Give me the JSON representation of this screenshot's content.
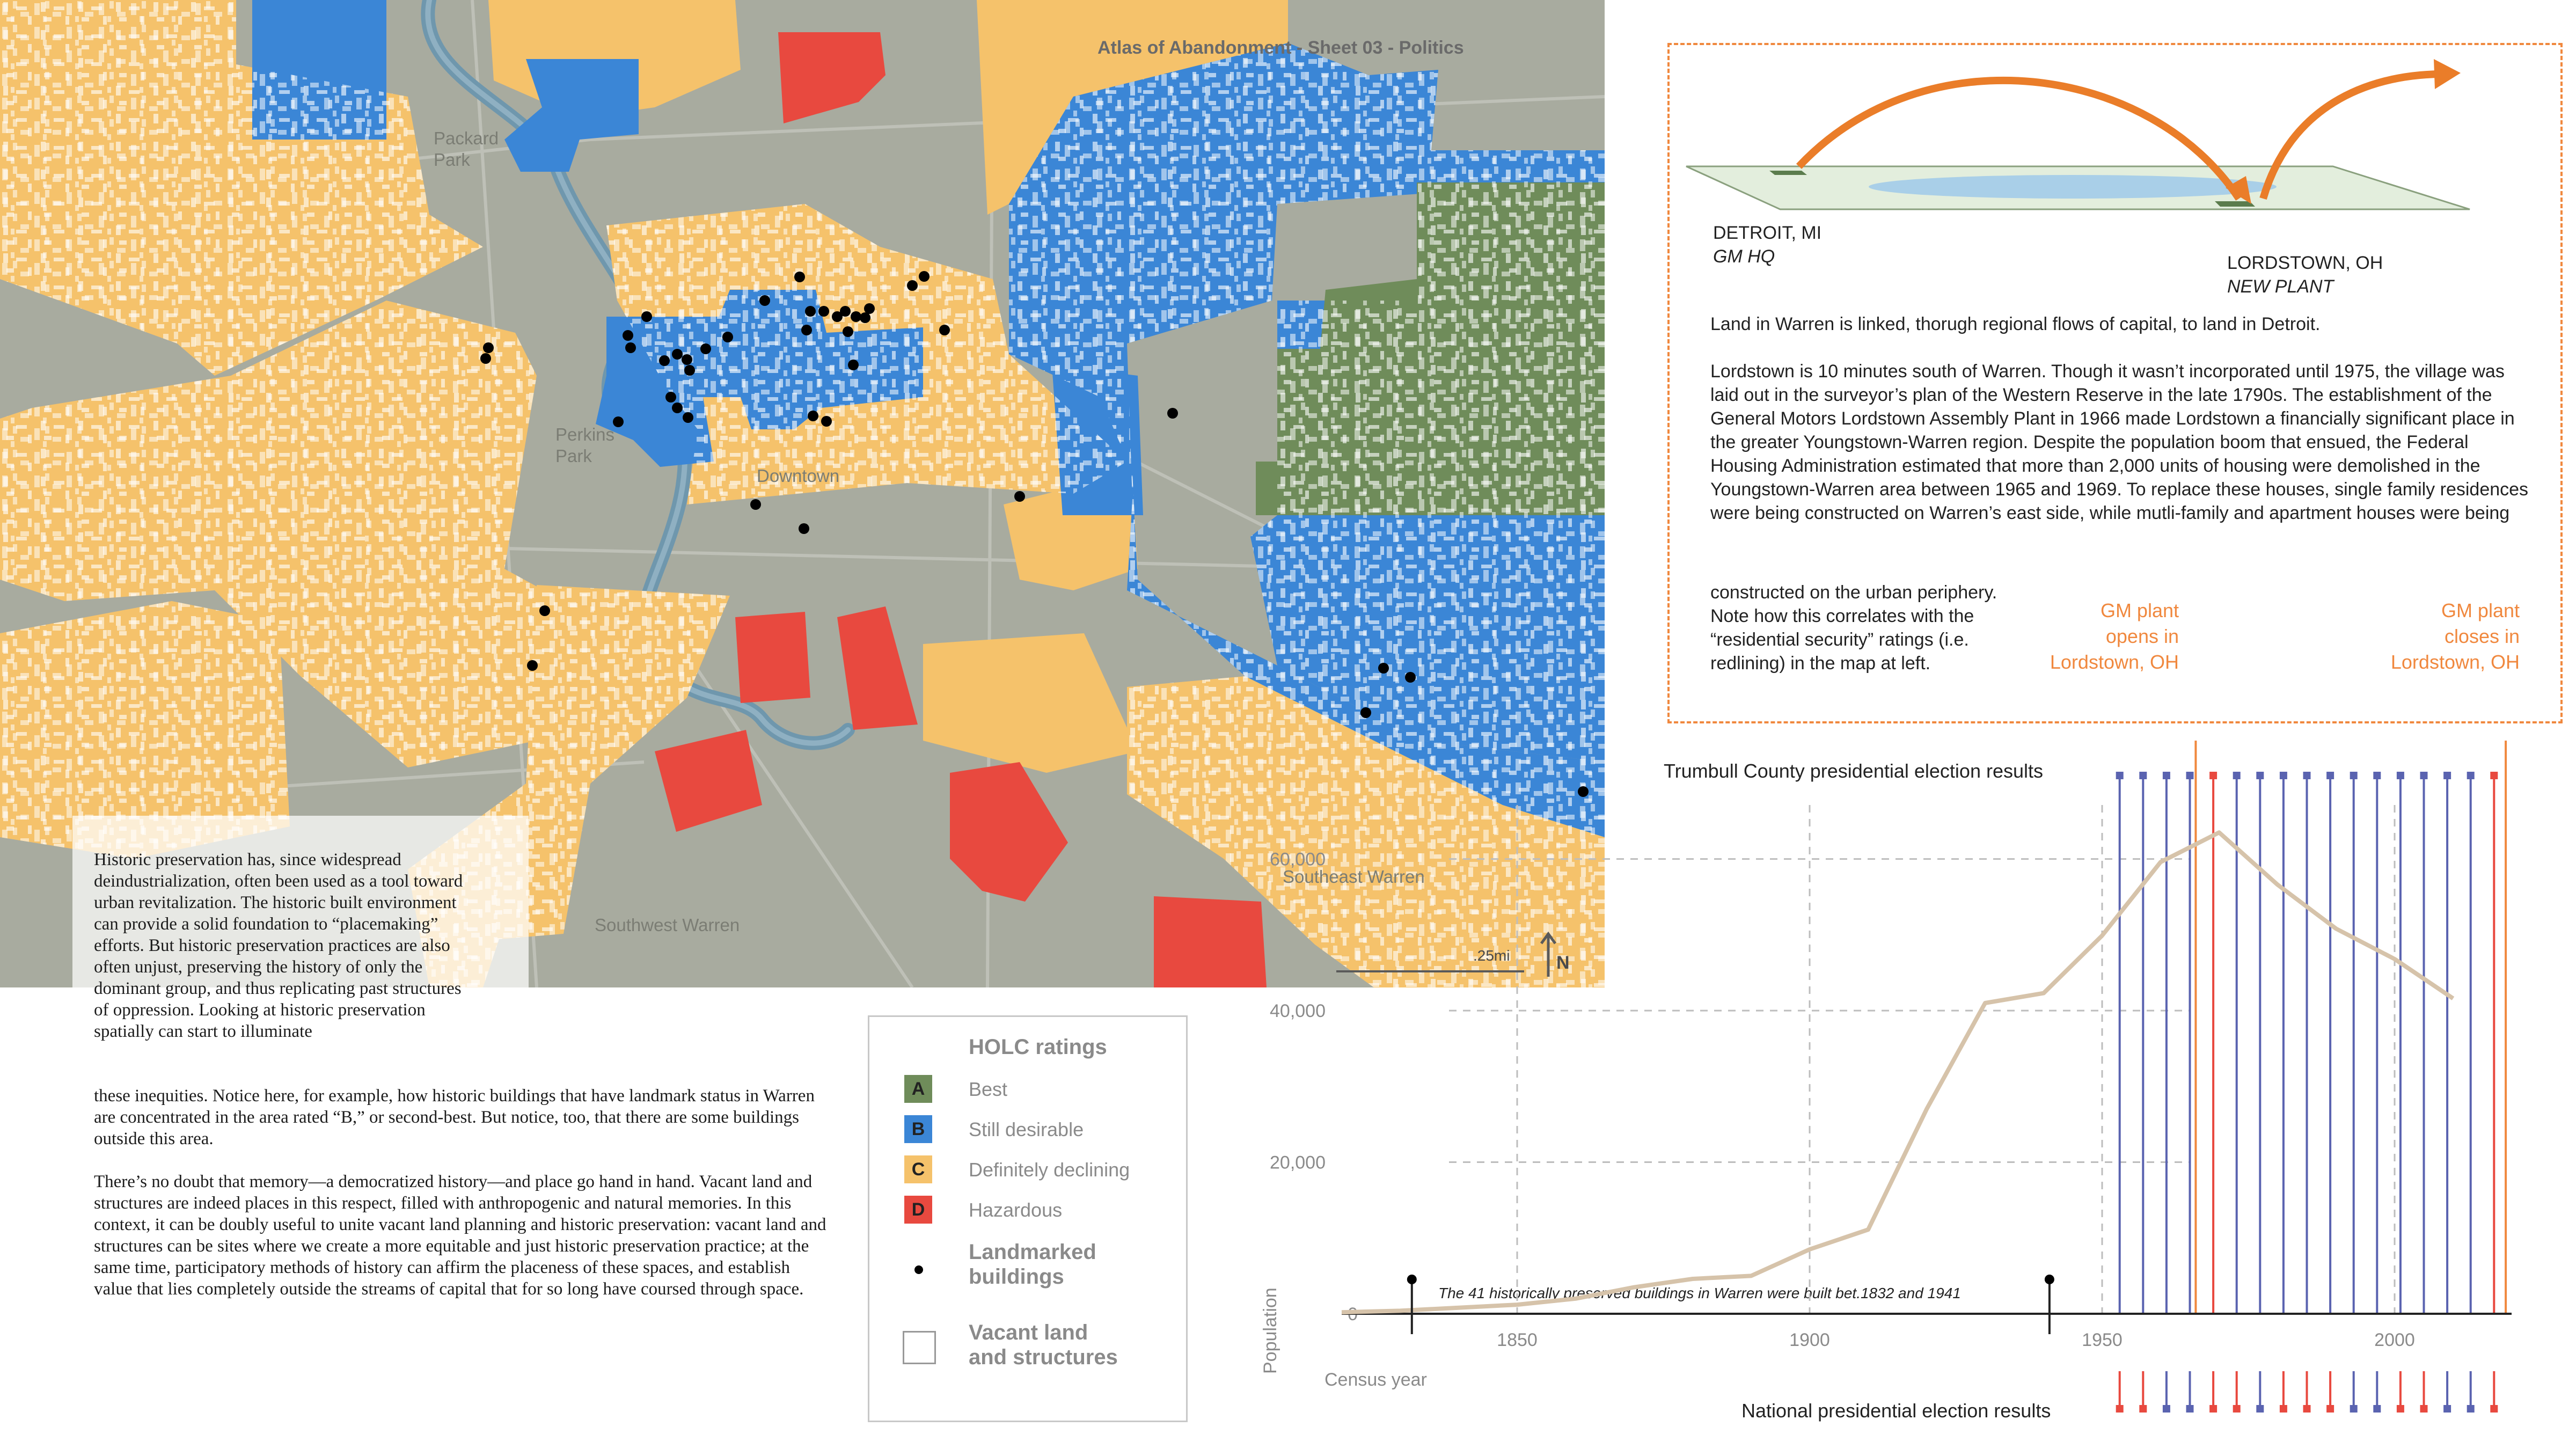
{
  "map": {
    "sheet_title": "Atlas of Abandonment - Sheet 03 - Politics",
    "labels": {
      "packard_park": "Packard\nPark",
      "perkins_park": "Perkins\nPark",
      "downtown": "Downtown",
      "southwest": "Southwest Warren",
      "southeast": "Southeast Warren"
    },
    "scale_label": ".25mi",
    "north_label": "N",
    "colors": {
      "best": "#6f8c5a",
      "still_desirable": "#3b86d6",
      "declining": "#f5c26b",
      "hazardous": "#e8493f",
      "aerial_base": "#a8ab9e",
      "river": "#6f97ad"
    }
  },
  "essay": {
    "paragraph_1_indented": "Historic preservation has, since widespread deindustrialization, often been used as a tool toward urban revitalization. The historic built environment can provide a solid foundation to “placemaking” efforts. But historic preservation practices are also often unjust, preserving the history of only the dominant group, and thus replicating past structures of oppression. Looking at historic preservation spatially can start to illuminate",
    "paragraph_1_rest": "these inequities. Notice here, for example, how historic buildings that have landmark status in Warren are concentrated in the area rated “B,” or second-best. But notice, too, that there are some buildings outside this area.",
    "paragraph_2": "There’s no doubt that memory—a democratized history—and place go hand in hand. Vacant land and structures are indeed places in this respect, filled with anthropogenic and natural memories.   In this context, it can be doubly useful to unite vacant land planning and historic preservation: vacant land and structures can be sites where we create a more equitable and just historic preservation practice; at the same time, participatory methods of history can affirm the placeness of these spaces, and establish value that lies completely outside the streams of capital that for so long have coursed through space."
  },
  "legend": {
    "title": "HOLC ratings",
    "items": [
      {
        "letter": "A",
        "label": "Best",
        "color": "#6f8c5a"
      },
      {
        "letter": "B",
        "label": "Still desirable",
        "color": "#3b86d6"
      },
      {
        "letter": "C",
        "label": "Definitely declining",
        "color": "#f5c26b"
      },
      {
        "letter": "D",
        "label": "Hazardous",
        "color": "#e8493f"
      }
    ],
    "landmarked": "Landmarked\nbuildings",
    "vacant": "Vacant land\nand structures"
  },
  "info": {
    "detroit": "DETROIT, MI",
    "detroit_sub": "GM HQ",
    "lordstown": "LORDSTOWN, OH",
    "lordstown_sub": "NEW PLANT",
    "para_1": "Land in Warren is linked, thorugh regional flows of capital, to land in Detroit.",
    "para_2": "Lordstown is 10 minutes south of Warren. Though it wasn’t incorporated until 1975, the village was laid out in the surveyor’s plan of the Western Reserve in the late 1790s. The establishment of the General Motors Lordstown Assembly Plant in 1966 made Lordstown a financially significant place in the greater Youngstown-Warren region. Despite the population boom that ensued, the Federal Housing Administration estimated that more than 2,000 units of housing were demolished in the Youngstown-Warren area between 1965 and 1969. To replace these houses, single family residences were being constructed on Warren’s east side, while mutli-family and apartment houses were being",
    "para_2_narrow": "constructed on the urban periphery. Note how this correlates with the “residential security” ratings (i.e. redlining) in the map at left.",
    "gm_open": "GM plant\nopens in\nLordstown, OH",
    "gm_close": "GM plant\ncloses in\nLordstown, OH"
  },
  "chart_data": {
    "type": "line",
    "xlabel": "Census year",
    "ylabel": "Population",
    "x_ticks": [
      1850,
      1900,
      1950,
      2000
    ],
    "y_ticks": [
      0,
      20000,
      40000,
      60000
    ],
    "y_tick_labels": [
      "0",
      "20,000",
      "40,000",
      "60,000"
    ],
    "xlim": [
      1820,
      2020
    ],
    "ylim": [
      0,
      65000
    ],
    "grid": true,
    "series": [
      {
        "color": "#d6c3aa",
        "x": [
          1820,
          1830,
          1840,
          1850,
          1860,
          1870,
          1880,
          1890,
          1900,
          1910,
          1920,
          1930,
          1940,
          1950,
          1960,
          1970,
          1980,
          1990,
          2000,
          2010
        ],
        "y": [
          200,
          400,
          800,
          1200,
          2000,
          3500,
          4600,
          5000,
          8500,
          11100,
          27000,
          41000,
          42300,
          49900,
          59600,
          63500,
          56600,
          50800,
          46800,
          41600
        ]
      }
    ],
    "annotation": "The 41 historically preserved buildings in Warren were built bet.1832 and 1941",
    "annotation_markers_x": [
      1832,
      1941
    ],
    "gm_open_year": 1966,
    "gm_close_year": 2019,
    "trumbull_label": "Trumbull County presidential election results",
    "national_label": "National presidential election results",
    "trumbull_results": [
      {
        "year": 1952,
        "party": "D"
      },
      {
        "year": 1956,
        "party": "D"
      },
      {
        "year": 1960,
        "party": "D"
      },
      {
        "year": 1964,
        "party": "D"
      },
      {
        "year": 1968,
        "party": "R"
      },
      {
        "year": 1972,
        "party": "D"
      },
      {
        "year": 1976,
        "party": "D"
      },
      {
        "year": 1980,
        "party": "D"
      },
      {
        "year": 1984,
        "party": "D"
      },
      {
        "year": 1988,
        "party": "D"
      },
      {
        "year": 1992,
        "party": "D"
      },
      {
        "year": 1996,
        "party": "D"
      },
      {
        "year": 2000,
        "party": "D"
      },
      {
        "year": 2004,
        "party": "D"
      },
      {
        "year": 2008,
        "party": "D"
      },
      {
        "year": 2012,
        "party": "D"
      },
      {
        "year": 2016,
        "party": "R"
      }
    ],
    "national_results": [
      {
        "year": 1952,
        "party": "R"
      },
      {
        "year": 1956,
        "party": "R"
      },
      {
        "year": 1960,
        "party": "D"
      },
      {
        "year": 1964,
        "party": "D"
      },
      {
        "year": 1968,
        "party": "R"
      },
      {
        "year": 1972,
        "party": "R"
      },
      {
        "year": 1976,
        "party": "D"
      },
      {
        "year": 1980,
        "party": "R"
      },
      {
        "year": 1984,
        "party": "R"
      },
      {
        "year": 1988,
        "party": "R"
      },
      {
        "year": 1992,
        "party": "D"
      },
      {
        "year": 1996,
        "party": "D"
      },
      {
        "year": 2000,
        "party": "R"
      },
      {
        "year": 2004,
        "party": "R"
      },
      {
        "year": 2008,
        "party": "D"
      },
      {
        "year": 2012,
        "party": "D"
      },
      {
        "year": 2016,
        "party": "R"
      }
    ],
    "party_colors": {
      "D": "#5a63b0",
      "R": "#e8493f"
    }
  }
}
